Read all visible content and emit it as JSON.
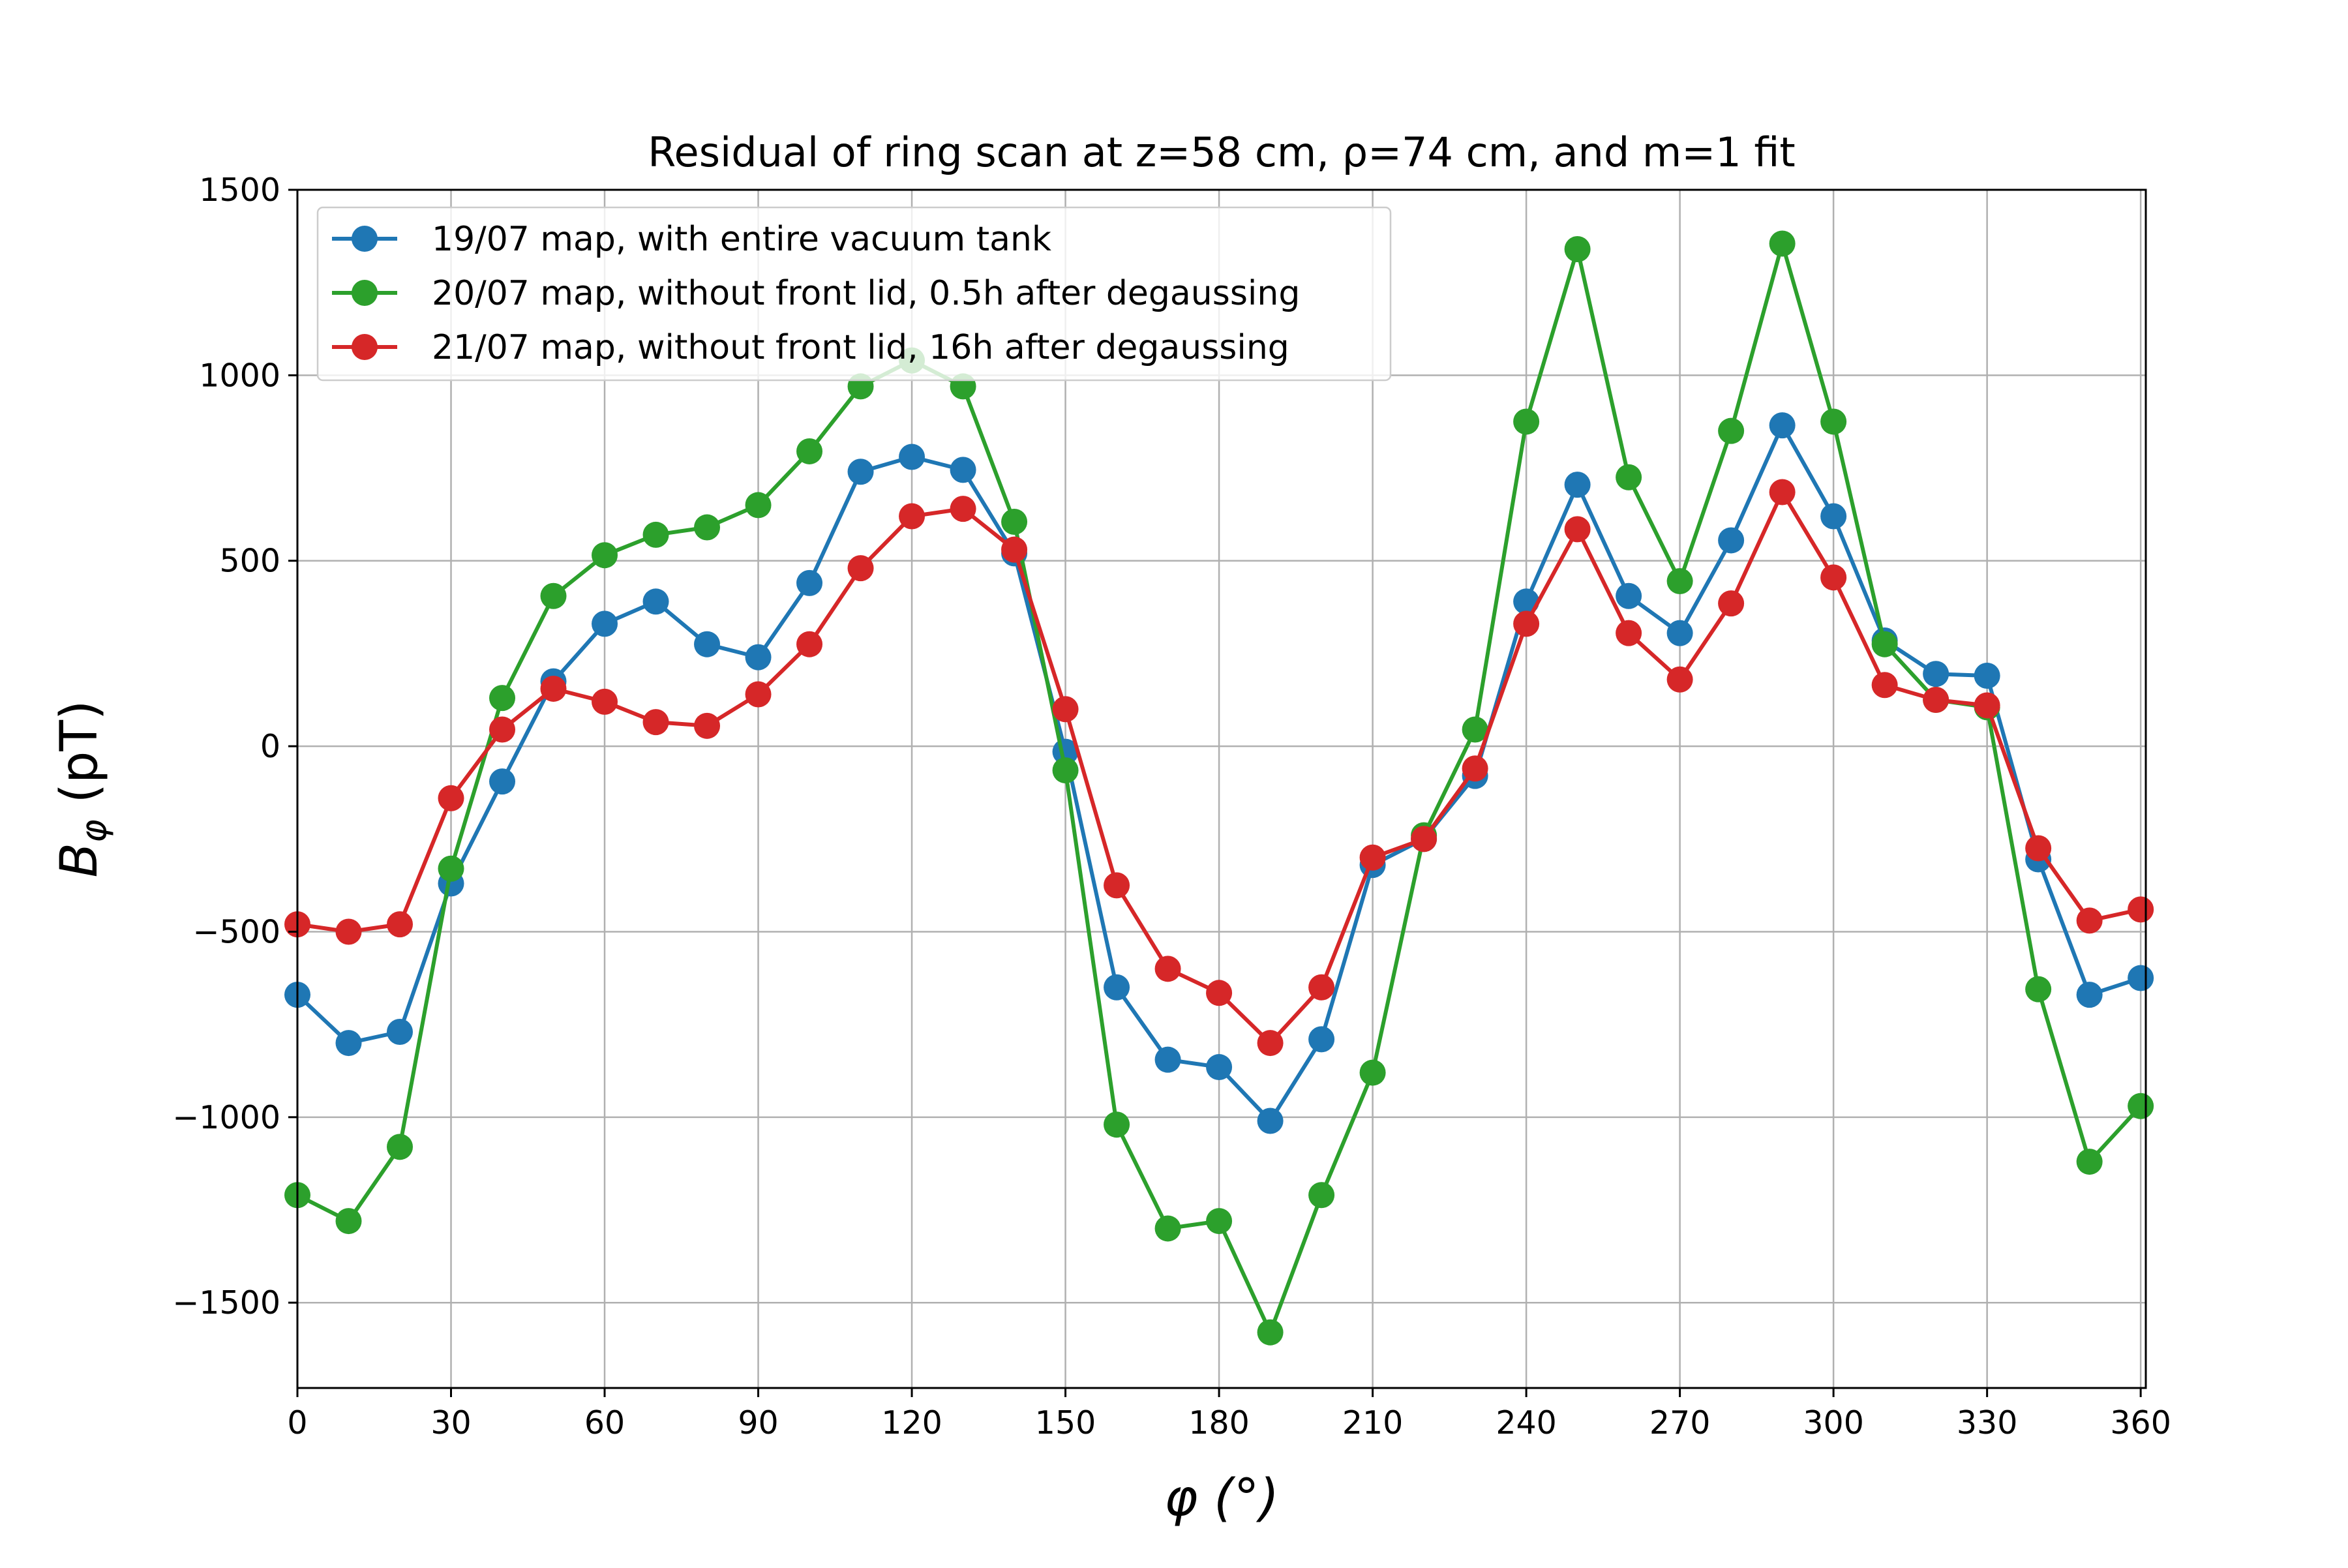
{
  "chart_data": {
    "type": "line",
    "title": "Residual of ring scan at z=58 cm, ρ=74 cm, and m=1 fit",
    "xlabel": "φ (°)",
    "ylabel": "Bφ (pT)",
    "ylabel_main": "B",
    "ylabel_sub": "φ",
    "ylabel_unit": " (pT)",
    "xlim": [
      0,
      361
    ],
    "ylim": [
      -1730,
      1500
    ],
    "xticks": [
      "0",
      "30",
      "60",
      "90",
      "120",
      "150",
      "180",
      "210",
      "240",
      "270",
      "300",
      "330",
      "360"
    ],
    "yticks": [
      "1500",
      "1000",
      "500",
      "0",
      "−500",
      "−1000",
      "−1500"
    ],
    "grid": true,
    "legend_position": "top-left",
    "x": [
      0,
      10,
      20,
      30,
      40,
      50,
      60,
      70,
      80,
      90,
      100,
      110,
      120,
      130,
      140,
      150,
      160,
      170,
      180,
      190,
      200,
      210,
      220,
      230,
      240,
      250,
      260,
      270,
      280,
      290,
      300,
      310,
      320,
      330,
      340,
      350,
      360
    ],
    "series": [
      {
        "name": "19/07 map, with entire vacuum tank",
        "color": "#1f77b4",
        "values": [
          -670,
          -800,
          -770,
          -370,
          -95,
          175,
          330,
          390,
          275,
          240,
          440,
          740,
          780,
          745,
          520,
          -15,
          -650,
          -845,
          -865,
          -1010,
          -790,
          -320,
          -250,
          -80,
          390,
          705,
          405,
          305,
          555,
          865,
          620,
          285,
          195,
          190,
          -305,
          -670,
          -625
        ]
      },
      {
        "name": "20/07 map, without front lid, 0.5h after degaussing",
        "color": "#2ca02c",
        "values": [
          -1210,
          -1280,
          -1080,
          -330,
          130,
          405,
          515,
          570,
          590,
          650,
          795,
          970,
          1040,
          970,
          605,
          -65,
          -1020,
          -1300,
          -1280,
          -1580,
          -1210,
          -880,
          -240,
          45,
          875,
          1340,
          725,
          445,
          850,
          1355,
          875,
          275,
          125,
          105,
          -655,
          -1120,
          -970
        ]
      },
      {
        "name": "21/07 map, without front lid, 16h after degaussing",
        "color": "#d62728",
        "values": [
          -480,
          -500,
          -480,
          -140,
          45,
          155,
          120,
          65,
          55,
          140,
          275,
          480,
          620,
          640,
          530,
          100,
          -375,
          -600,
          -665,
          -800,
          -650,
          -300,
          -250,
          -60,
          330,
          585,
          305,
          180,
          385,
          685,
          455,
          165,
          125,
          110,
          -275,
          -470,
          -440
        ]
      }
    ]
  }
}
